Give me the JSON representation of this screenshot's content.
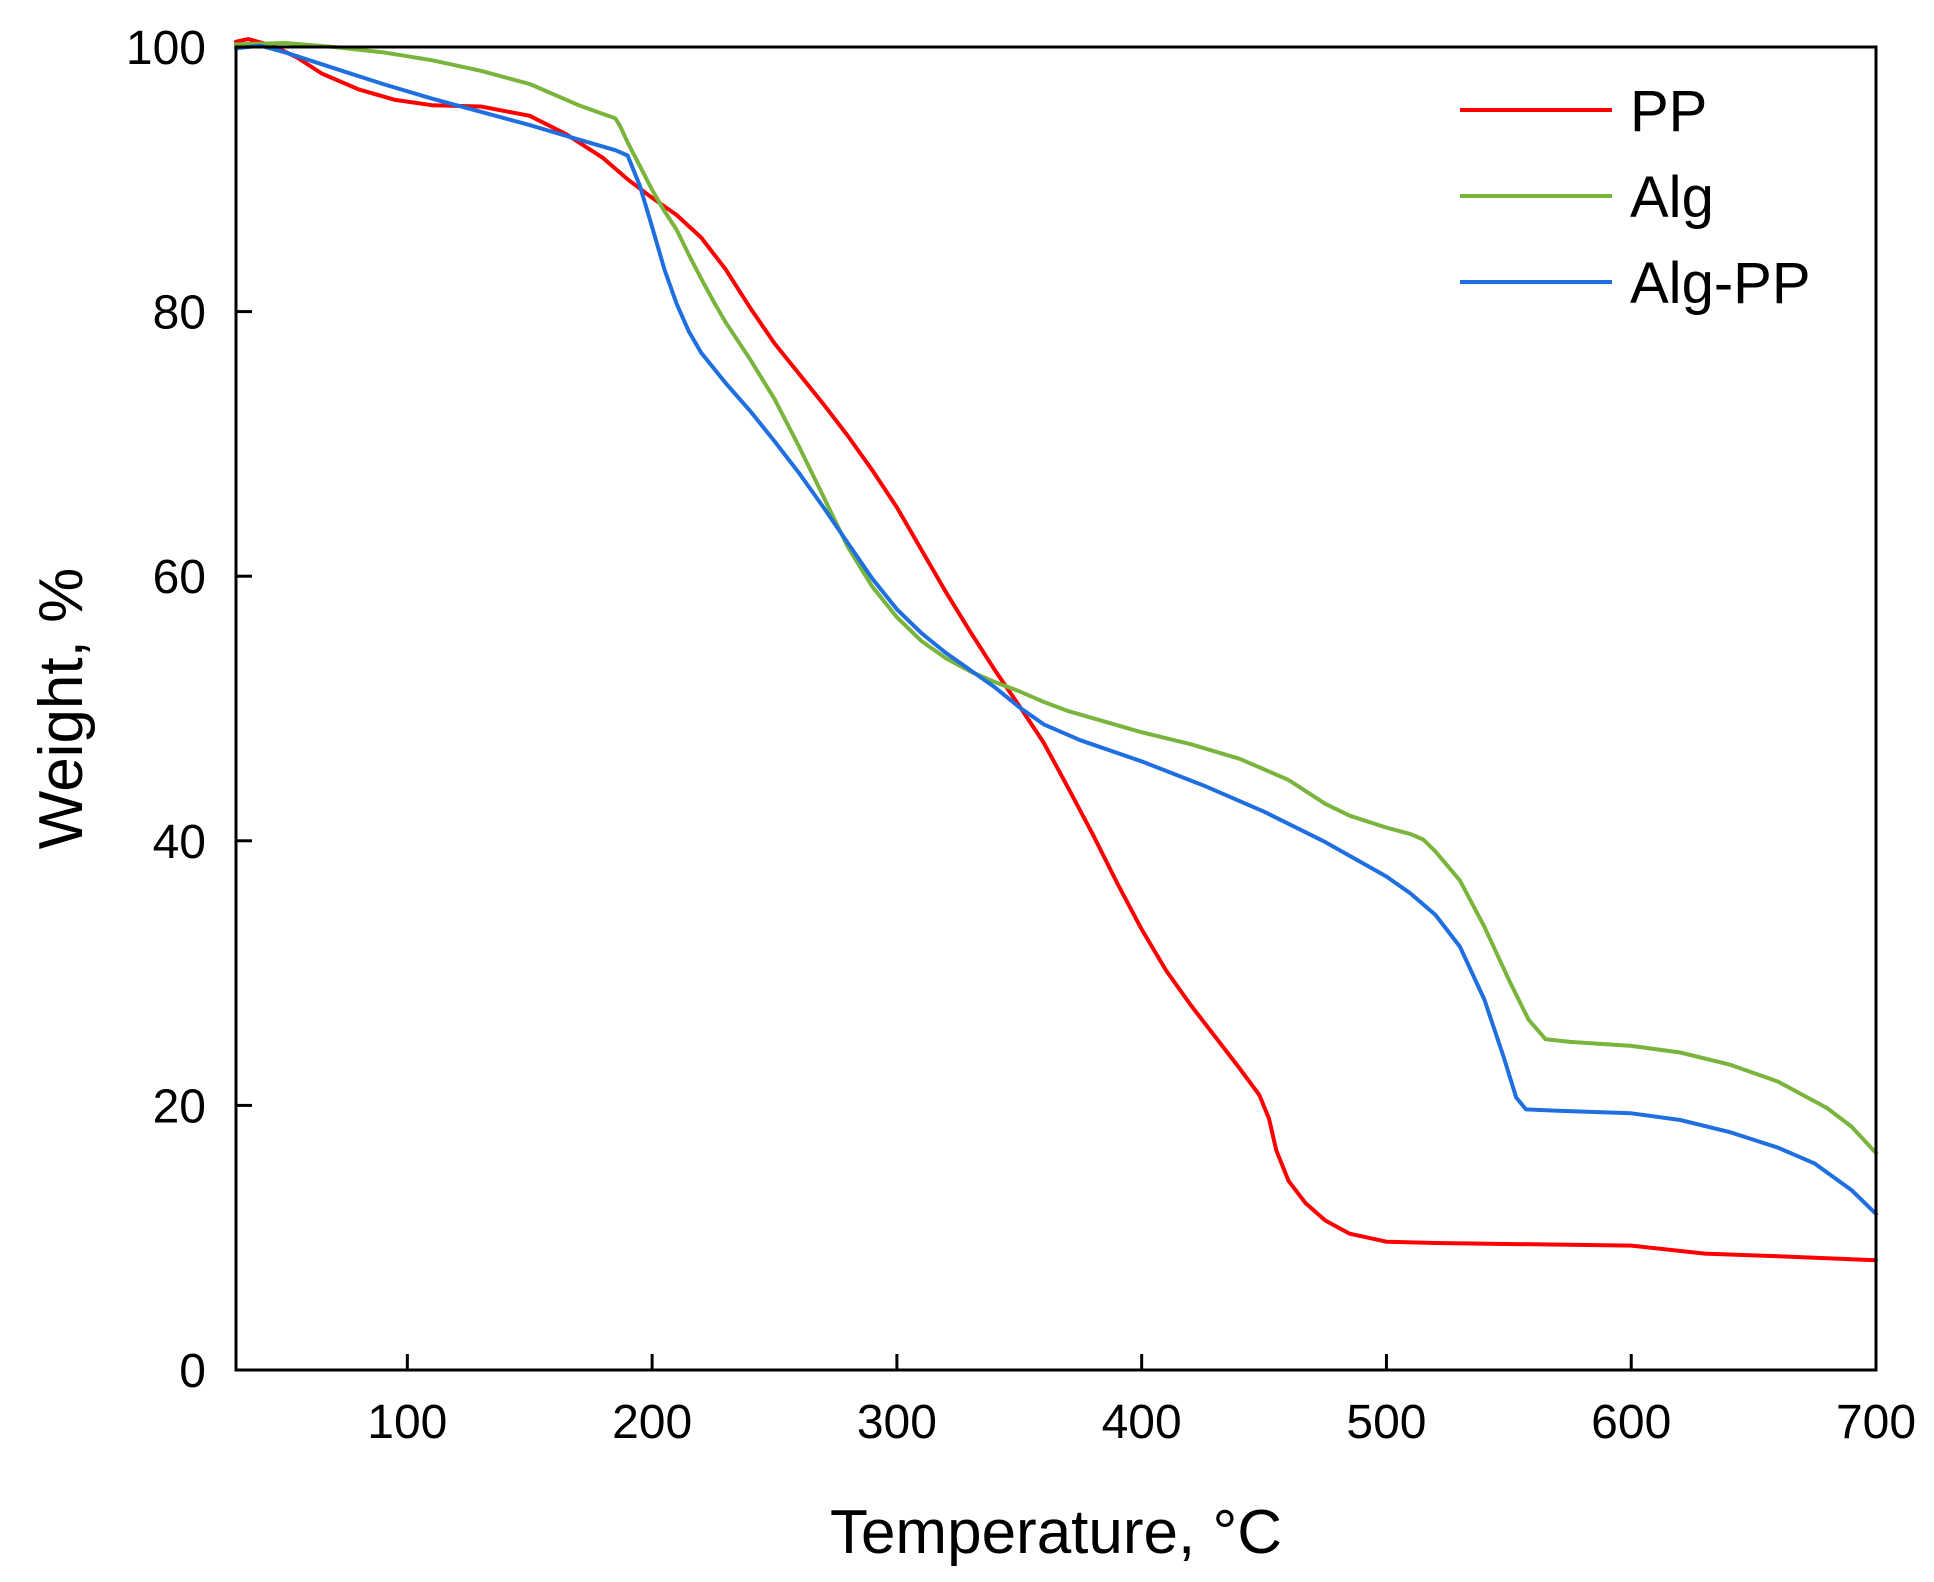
{
  "chart_data": {
    "type": "line",
    "title": "",
    "xlabel": "Temperature, °C",
    "ylabel": "Weight, %",
    "xlim": [
      30,
      700
    ],
    "ylim": [
      0,
      100
    ],
    "x_ticks": [
      100,
      200,
      300,
      400,
      500,
      600,
      700
    ],
    "y_ticks": [
      0,
      20,
      40,
      60,
      80,
      100
    ],
    "grid": false,
    "legend_position": "top-right",
    "series": [
      {
        "name": "PP",
        "color": "#ff0000",
        "points": [
          [
            30,
            100.4
          ],
          [
            35,
            100.6
          ],
          [
            45,
            100.1
          ],
          [
            55,
            99.2
          ],
          [
            65,
            98.0
          ],
          [
            80,
            96.8
          ],
          [
            95,
            96.0
          ],
          [
            110,
            95.6
          ],
          [
            130,
            95.5
          ],
          [
            150,
            94.8
          ],
          [
            165,
            93.4
          ],
          [
            180,
            91.6
          ],
          [
            190,
            90.0
          ],
          [
            200,
            88.6
          ],
          [
            210,
            87.3
          ],
          [
            220,
            85.6
          ],
          [
            230,
            83.2
          ],
          [
            240,
            80.3
          ],
          [
            250,
            77.6
          ],
          [
            260,
            75.3
          ],
          [
            270,
            73.0
          ],
          [
            280,
            70.6
          ],
          [
            290,
            68.0
          ],
          [
            300,
            65.2
          ],
          [
            310,
            62.0
          ],
          [
            320,
            58.8
          ],
          [
            330,
            55.8
          ],
          [
            340,
            52.9
          ],
          [
            350,
            50.2
          ],
          [
            360,
            47.4
          ],
          [
            370,
            44.0
          ],
          [
            380,
            40.5
          ],
          [
            390,
            36.8
          ],
          [
            400,
            33.3
          ],
          [
            410,
            30.2
          ],
          [
            420,
            27.6
          ],
          [
            430,
            25.2
          ],
          [
            440,
            22.8
          ],
          [
            448,
            20.8
          ],
          [
            452,
            19.0
          ],
          [
            455,
            16.6
          ],
          [
            460,
            14.3
          ],
          [
            467,
            12.6
          ],
          [
            475,
            11.3
          ],
          [
            485,
            10.3
          ],
          [
            500,
            9.7
          ],
          [
            520,
            9.6
          ],
          [
            560,
            9.5
          ],
          [
            600,
            9.4
          ],
          [
            630,
            8.8
          ],
          [
            660,
            8.6
          ],
          [
            700,
            8.3
          ]
        ]
      },
      {
        "name": "Alg",
        "color": "#79b43c",
        "points": [
          [
            30,
            100.2
          ],
          [
            50,
            100.3
          ],
          [
            70,
            100.0
          ],
          [
            90,
            99.6
          ],
          [
            110,
            99.0
          ],
          [
            130,
            98.2
          ],
          [
            150,
            97.2
          ],
          [
            170,
            95.6
          ],
          [
            185,
            94.6
          ],
          [
            187,
            94.0
          ],
          [
            190,
            92.8
          ],
          [
            195,
            91.0
          ],
          [
            200,
            89.2
          ],
          [
            205,
            87.6
          ],
          [
            210,
            86.2
          ],
          [
            215,
            84.3
          ],
          [
            220,
            82.5
          ],
          [
            225,
            80.8
          ],
          [
            230,
            79.2
          ],
          [
            235,
            77.8
          ],
          [
            240,
            76.4
          ],
          [
            250,
            73.4
          ],
          [
            260,
            69.8
          ],
          [
            270,
            66.0
          ],
          [
            280,
            62.2
          ],
          [
            290,
            59.2
          ],
          [
            300,
            56.9
          ],
          [
            310,
            55.1
          ],
          [
            320,
            53.8
          ],
          [
            330,
            52.8
          ],
          [
            340,
            52.0
          ],
          [
            350,
            51.3
          ],
          [
            360,
            50.5
          ],
          [
            370,
            49.8
          ],
          [
            385,
            49.0
          ],
          [
            400,
            48.2
          ],
          [
            420,
            47.3
          ],
          [
            440,
            46.2
          ],
          [
            460,
            44.6
          ],
          [
            475,
            42.8
          ],
          [
            485,
            41.9
          ],
          [
            500,
            41.0
          ],
          [
            510,
            40.5
          ],
          [
            515,
            40.1
          ],
          [
            520,
            39.2
          ],
          [
            530,
            37.0
          ],
          [
            540,
            33.5
          ],
          [
            550,
            29.5
          ],
          [
            558,
            26.5
          ],
          [
            565,
            25.0
          ],
          [
            575,
            24.8
          ],
          [
            600,
            24.5
          ],
          [
            620,
            24.0
          ],
          [
            640,
            23.1
          ],
          [
            660,
            21.8
          ],
          [
            680,
            19.8
          ],
          [
            690,
            18.4
          ],
          [
            700,
            16.4
          ]
        ]
      },
      {
        "name": "Alg-PP",
        "color": "#1f6fe0",
        "points": [
          [
            30,
            99.9
          ],
          [
            40,
            100.1
          ],
          [
            50,
            99.6
          ],
          [
            70,
            98.4
          ],
          [
            90,
            97.2
          ],
          [
            110,
            96.1
          ],
          [
            130,
            95.1
          ],
          [
            150,
            94.1
          ],
          [
            170,
            93.0
          ],
          [
            185,
            92.2
          ],
          [
            190,
            91.8
          ],
          [
            195,
            89.5
          ],
          [
            200,
            86.4
          ],
          [
            205,
            83.2
          ],
          [
            210,
            80.6
          ],
          [
            215,
            78.5
          ],
          [
            220,
            76.9
          ],
          [
            230,
            74.6
          ],
          [
            240,
            72.5
          ],
          [
            250,
            70.2
          ],
          [
            260,
            67.8
          ],
          [
            270,
            65.2
          ],
          [
            280,
            62.5
          ],
          [
            290,
            59.8
          ],
          [
            300,
            57.5
          ],
          [
            310,
            55.7
          ],
          [
            320,
            54.2
          ],
          [
            330,
            52.9
          ],
          [
            340,
            51.6
          ],
          [
            350,
            50.1
          ],
          [
            360,
            48.8
          ],
          [
            375,
            47.6
          ],
          [
            400,
            46.0
          ],
          [
            425,
            44.2
          ],
          [
            450,
            42.2
          ],
          [
            475,
            39.9
          ],
          [
            500,
            37.3
          ],
          [
            510,
            36.0
          ],
          [
            520,
            34.4
          ],
          [
            530,
            32.0
          ],
          [
            540,
            28.0
          ],
          [
            548,
            23.6
          ],
          [
            553,
            20.6
          ],
          [
            557,
            19.7
          ],
          [
            570,
            19.6
          ],
          [
            600,
            19.4
          ],
          [
            620,
            18.9
          ],
          [
            640,
            18.0
          ],
          [
            660,
            16.8
          ],
          [
            675,
            15.6
          ],
          [
            690,
            13.6
          ],
          [
            700,
            11.8
          ]
        ]
      }
    ]
  }
}
